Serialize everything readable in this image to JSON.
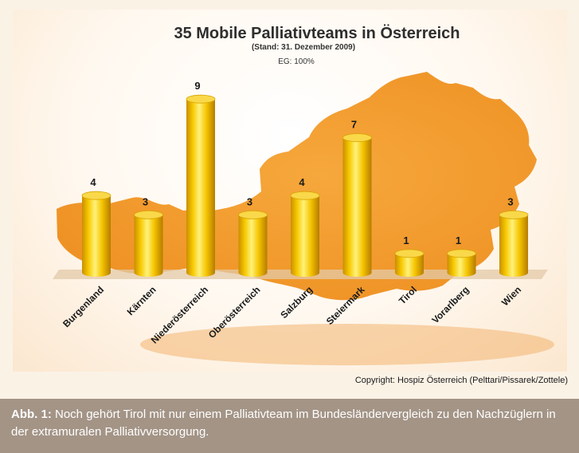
{
  "chart_data": {
    "type": "bar",
    "title": "35 Mobile Palliativteams in Österreich",
    "subtitle": "(Stand: 31. Dezember 2009)",
    "annotation": "EG: 100%",
    "categories": [
      "Burgenland",
      "Kärnten",
      "Niederösterreich",
      "Oberösterreich",
      "Salzburg",
      "Steiermark",
      "Tirol",
      "Vorarlberg",
      "Wien"
    ],
    "values": [
      4,
      3,
      9,
      3,
      4,
      7,
      1,
      1,
      3
    ],
    "ylim": [
      0,
      10
    ],
    "bar_color": "#f5c400",
    "background_map_color": "#f29a2e"
  },
  "copyright": "Copyright: Hospiz Österreich (Pelttari/Pissarek/Zottele)",
  "caption": {
    "label": "Abb. 1:",
    "text": " Noch gehört Tirol mit nur einem Palliativteam im Bundesländervergleich zu den Nachzüglern in der extramuralen Palliativversorgung."
  }
}
